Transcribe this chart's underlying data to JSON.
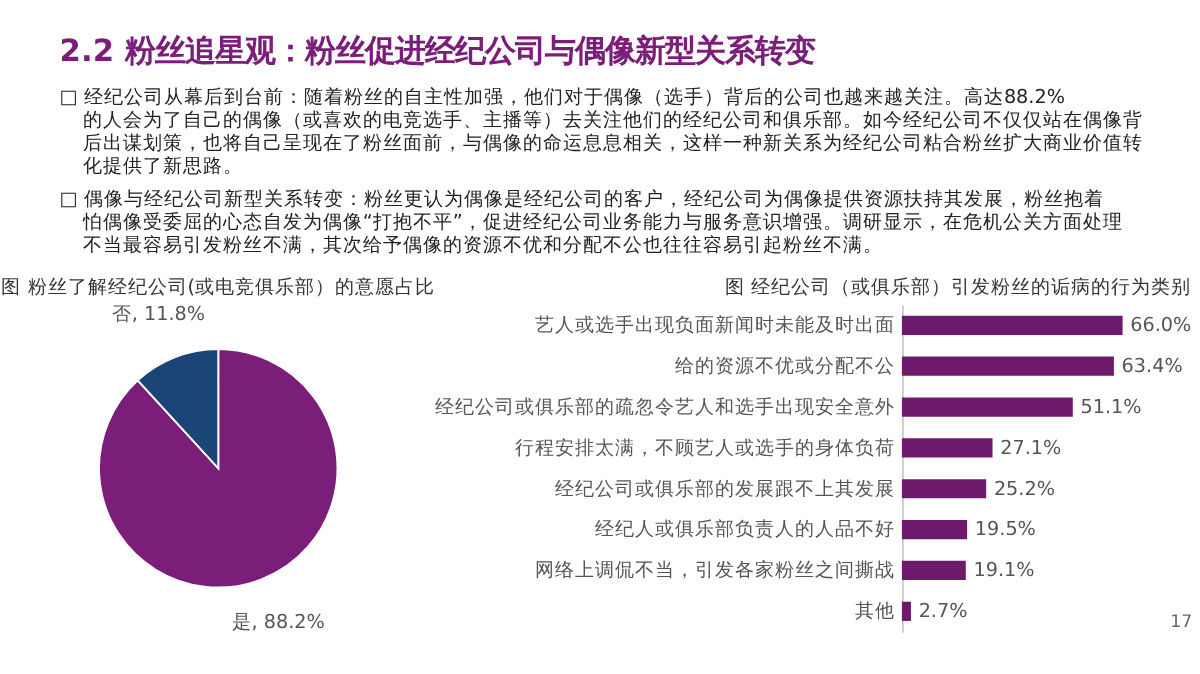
{
  "chart_data": [
    {
      "type": "other",
      "title": "2.2 粉丝追星观：粉丝促进经纪公司与偶像新型关系转变",
      "annotations": [
        "□ 经纪公司从幕后到台前：随着粉丝的自主性加强，他们对于偶像（选手）背后的公司也越来越关注。高达88.2%的人会为了自己的偶像（或喜欢的电竞选手、主播等）去关注他们的经纪公司和俱乐部。如今经纪公司不仅仅站在偶像背后出谋划策，也将自己呈现在了粉丝面前，与偶像的命运息息相关，这样一种新关系为经纪公司粘合粉丝扩大商业价值转化提供了新思路。",
        "□ 偶像与经纪公司新型关系转变：粉丝更认为偶像是经纪公司的客户，经纪公司为偶像提供资源扶持其发展，粉丝抱着怕偶像受委屈的心态自发为偶像“打抱不平”，促进经纪公司业务能力与服务意识增强。调研显示，在危机公关方面处理不当最容易引发粉丝不满，其次给予偶像的资源不优和分配不公也往往容易引起粉丝不满。",
        "17"
      ]
    },
    {
      "type": "pie",
      "title": "图  粉丝了解经纪公司(或电竞俱乐部）的意愿占比",
      "categories": [
        "是",
        "否"
      ],
      "values": [
        88.2,
        11.8
      ],
      "colors": [
        "#7b1e7a",
        "#1b4577"
      ],
      "value_labels": [
        "88.2%",
        "11.8%"
      ]
    },
    {
      "type": "bar",
      "orientation": "horizontal",
      "title": "图  经纪公司（或俱乐部）引发粉丝的诟病的行为类别",
      "categories": [
        "艺人或选手出现负面新闻时未能及时出面",
        "给的资源不优或分配不公",
        "经纪公司或俱乐部的疏忽令艺人和选手出现安全意外",
        "行程安排太满，不顾艺人或选手的身体负荷",
        "经纪公司或俱乐部的发展跟不上其发展",
        "经纪人或俱乐部负责人的人品不好",
        "网络上调侃不当，引发各家粉丝之间撕战",
        "其他"
      ],
      "values": [
        66.0,
        63.4,
        51.1,
        27.1,
        25.2,
        19.5,
        19.1,
        2.7
      ],
      "color": "#6d1a6c",
      "value_labels": [
        "66.0%",
        "63.4%",
        "51.1%",
        "27.1%",
        "25.2%",
        "19.5%",
        "19.1%",
        "2.7%"
      ]
    }
  ]
}
